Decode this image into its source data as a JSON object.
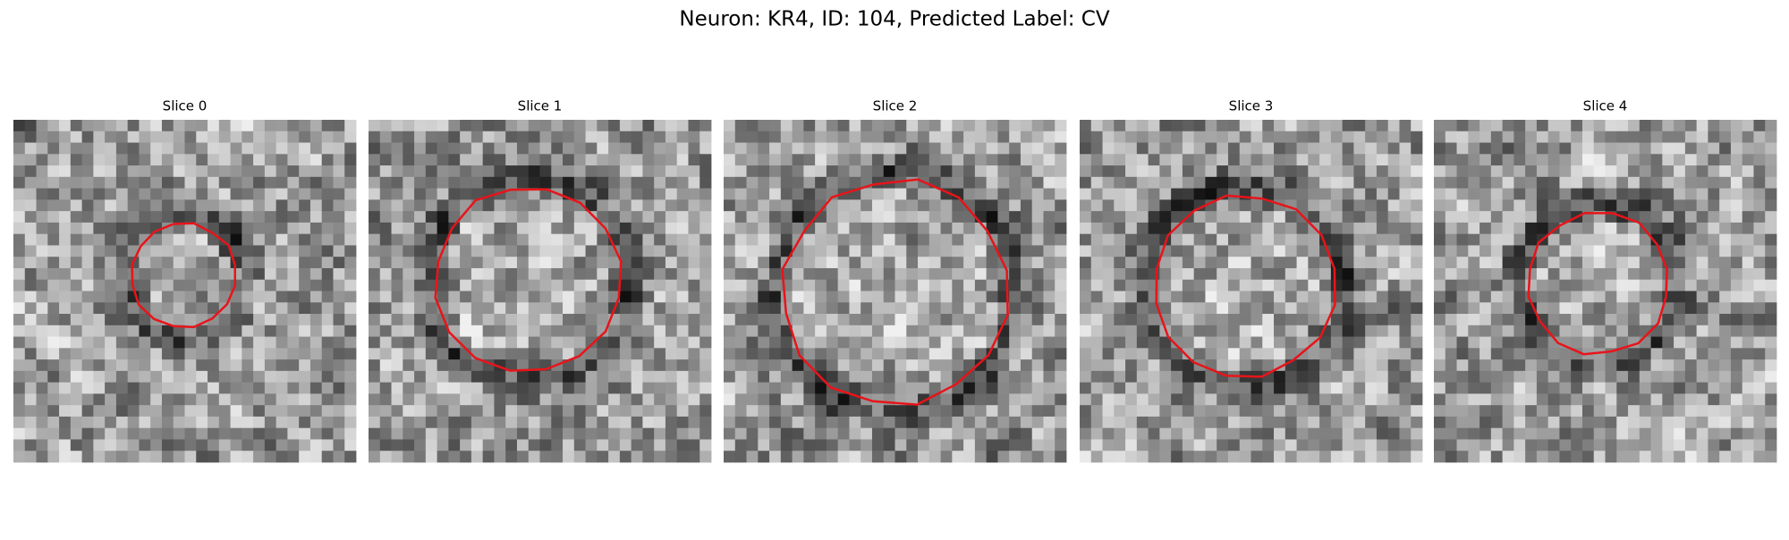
{
  "header": {
    "title": "Neuron: KR4, ID: 104, Predicted Label: CV"
  },
  "panels": [
    {
      "title": "Slice 0"
    },
    {
      "title": "Slice 1"
    },
    {
      "title": "Slice 2"
    },
    {
      "title": "Slice 3"
    },
    {
      "title": "Slice 4"
    }
  ]
}
